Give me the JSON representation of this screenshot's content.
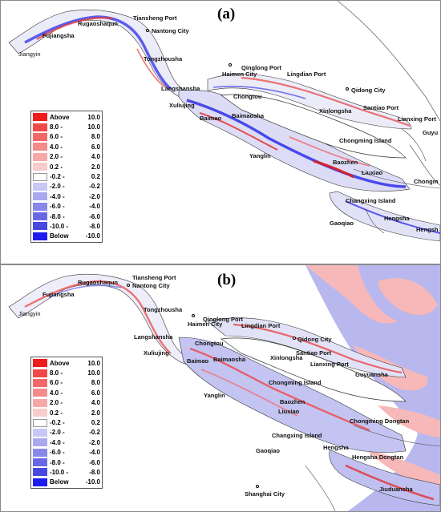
{
  "panels": {
    "a": {
      "label": "(a)",
      "places": [
        "Rugaoshaqun",
        "Tiansheng Port",
        "Nantong City",
        "Fujiangsha",
        "Jiangyin",
        "Tongzhousha",
        "Qinglong Port",
        "Haimen City",
        "Lingdian Port",
        "Qidong City",
        "Langshansha",
        "Chongtou",
        "Xuliujing",
        "Baimao",
        "Baimaosha",
        "Xinlongsha",
        "Santiao Port",
        "Lianxing Port",
        "Guyu",
        "Chongming Island",
        "Yanglin",
        "Baozhen",
        "Liuxiao",
        "Chongm",
        "Changxing Island",
        "Hengsha",
        "Gaoqiao",
        "Hengsh"
      ]
    },
    "b": {
      "label": "(b)",
      "places": [
        "Tiansheng Port",
        "Rugaoshaqun",
        "Nantong City",
        "Fujiangsha",
        "Jiangyin",
        "Tongzhousha",
        "Qinglong Port",
        "Haimen City",
        "Lingdian Port",
        "Qidong City",
        "Langshansha",
        "Chongtou",
        "Xinlongsha",
        "Santiao Port",
        "Xuliujing",
        "Baimao",
        "Baimaosha",
        "Lianxing Port",
        "Guyuansha",
        "Chongming Island",
        "Yanglin",
        "Baozhen",
        "Liuxiao",
        "Chongming Dongtan",
        "Changxing Island",
        "Hengsha",
        "Gaoqiao",
        "Hengsha Dongtan",
        "Shanghai City",
        "Jiuduansha"
      ]
    }
  },
  "legend": {
    "items": [
      {
        "from": "Above",
        "to": "10.0",
        "color": "#ee1c1c"
      },
      {
        "from": "8.0 -",
        "to": "10.0",
        "color": "#f04848"
      },
      {
        "from": "6.0 -",
        "to": "8.0",
        "color": "#f26868"
      },
      {
        "from": "4.0 -",
        "to": "6.0",
        "color": "#f48a8a"
      },
      {
        "from": "2.0 -",
        "to": "4.0",
        "color": "#f6a8a8"
      },
      {
        "from": "0.2 -",
        "to": "2.0",
        "color": "#f9cccc"
      },
      {
        "from": "-0.2 -",
        "to": "0.2",
        "color": "#ffffff"
      },
      {
        "from": "-2.0 -",
        "to": "-0.2",
        "color": "#c8c8f4"
      },
      {
        "from": "-4.0 -",
        "to": "-2.0",
        "color": "#a8a8ef"
      },
      {
        "from": "-6.0 -",
        "to": "-4.0",
        "color": "#8888ea"
      },
      {
        "from": "-8.0 -",
        "to": "-6.0",
        "color": "#6868e4"
      },
      {
        "from": "-10.0 -",
        "to": "-8.0",
        "color": "#4848e0"
      },
      {
        "from": "Below",
        "to": "-10.0",
        "color": "#1c1cee"
      }
    ]
  }
}
